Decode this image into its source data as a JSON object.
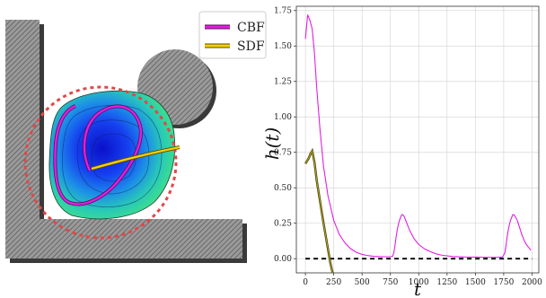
{
  "legend": {
    "items": [
      {
        "label": "CBF",
        "color": "#e020e0",
        "edge": "#5a0a5a"
      },
      {
        "label": "SDF",
        "color": "#f5d000",
        "edge": "#5a4a00"
      }
    ]
  },
  "chart_data": {
    "type": "line",
    "title": "",
    "xlabel": "t",
    "ylabel": "h(t)",
    "xlim": [
      -80,
      2060
    ],
    "ylim": [
      -0.1,
      1.78
    ],
    "xticks": [
      0,
      250,
      500,
      750,
      1000,
      1250,
      1500,
      1750,
      2000
    ],
    "yticks": [
      0.0,
      0.25,
      0.5,
      0.75,
      1.0,
      1.25,
      1.5,
      1.75
    ],
    "xtick_labels": [
      "0",
      "250",
      "500",
      "750",
      "1000",
      "1250",
      "1500",
      "1750",
      "2000"
    ],
    "ytick_labels": [
      "0.00",
      "0.25",
      "0.50",
      "0.75",
      "1.00",
      "1.25",
      "1.50",
      "1.75"
    ],
    "grid": true,
    "reference_line": {
      "y": 0.0,
      "style": "dashed",
      "color": "#000000"
    },
    "series": [
      {
        "name": "CBF",
        "color": "#e020e0",
        "x": [
          0,
          20,
          40,
          60,
          80,
          100,
          130,
          160,
          200,
          250,
          300,
          350,
          400,
          450,
          500,
          550,
          600,
          650,
          700,
          750,
          770,
          780,
          790,
          800,
          810,
          820,
          830,
          840,
          850,
          860,
          870,
          880,
          900,
          920,
          940,
          960,
          980,
          1000,
          1050,
          1100,
          1150,
          1200,
          1300,
          1400,
          1500,
          1600,
          1700,
          1740,
          1760,
          1770,
          1780,
          1790,
          1800,
          1810,
          1820,
          1830,
          1840,
          1850,
          1870,
          1890,
          1910,
          1930,
          1950,
          1970,
          1990
        ],
        "y": [
          1.55,
          1.72,
          1.68,
          1.62,
          1.45,
          1.2,
          0.9,
          0.65,
          0.44,
          0.27,
          0.17,
          0.11,
          0.07,
          0.045,
          0.03,
          0.022,
          0.017,
          0.015,
          0.014,
          0.014,
          0.018,
          0.04,
          0.09,
          0.15,
          0.2,
          0.24,
          0.27,
          0.29,
          0.31,
          0.31,
          0.3,
          0.28,
          0.24,
          0.2,
          0.17,
          0.14,
          0.12,
          0.1,
          0.07,
          0.05,
          0.035,
          0.025,
          0.015,
          0.012,
          0.011,
          0.01,
          0.01,
          0.012,
          0.04,
          0.09,
          0.15,
          0.2,
          0.24,
          0.27,
          0.29,
          0.31,
          0.31,
          0.3,
          0.27,
          0.22,
          0.17,
          0.13,
          0.1,
          0.08,
          0.06
        ]
      },
      {
        "name": "SDF",
        "color": "#c8a800",
        "x": [
          0,
          15,
          30,
          45,
          60,
          80,
          100,
          130,
          160,
          190,
          220,
          240
        ],
        "y": [
          0.67,
          0.69,
          0.71,
          0.74,
          0.76,
          0.68,
          0.55,
          0.4,
          0.25,
          0.11,
          -0.03,
          -0.1
        ]
      }
    ]
  },
  "scene": {
    "colors": {
      "wall": "#8a8a8a",
      "wall_shadow": "#3a3a3a",
      "safety_circle": "#e04848",
      "blob_outer": "#3ddc84",
      "blob_inner": "#1020e0"
    }
  }
}
